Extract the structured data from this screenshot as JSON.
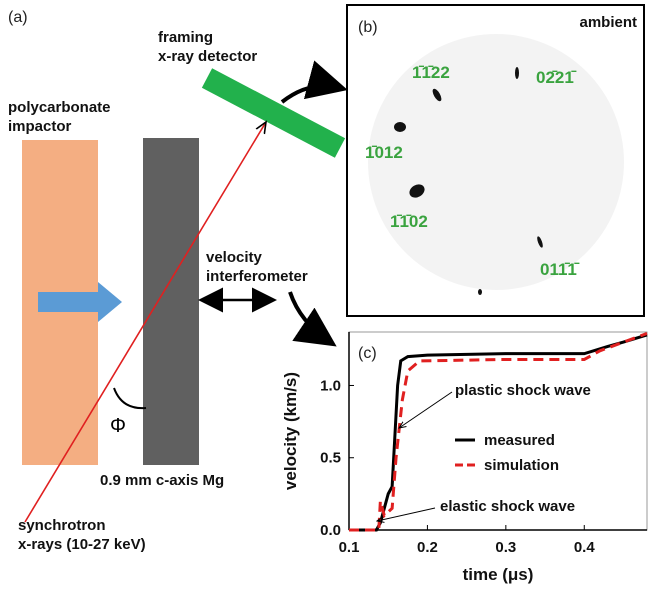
{
  "panel_a": {
    "label": "(a)",
    "detector_label": [
      "framing",
      "x-ray detector"
    ],
    "impactor_label": [
      "polycarbonate",
      "impactor"
    ],
    "interferometer_label": [
      "velocity",
      "interferometer"
    ],
    "angle_label": "Φ",
    "sample_label": "0.9 mm c-axis Mg",
    "source_label": [
      "synchrotron",
      "x-rays (10-27 keV)"
    ]
  },
  "panel_b": {
    "label": "(b)",
    "condition": "ambient",
    "reflections": [
      "1̄1̄22",
      "02̄21̄",
      "1̄012",
      "1̄1̄02",
      "011̄1̄"
    ]
  },
  "chart_data": {
    "type": "line",
    "panel_label": "(c)",
    "x_label": "time (μs)",
    "y_label": "velocity (km/s)",
    "xlim": [
      0.1,
      0.48
    ],
    "ylim": [
      0,
      1.37
    ],
    "xticks": [
      0.1,
      0.2,
      0.3,
      0.4
    ],
    "yticks": [
      {
        "value": 0,
        "label": "0.0"
      },
      0.5,
      {
        "value": 1,
        "label": "1.0"
      }
    ],
    "annotations": [
      "plastic shock wave",
      "elastic shock wave"
    ],
    "series": [
      {
        "name": "measured",
        "color": "#000000",
        "dash": false,
        "x": [
          0.1,
          0.135,
          0.14,
          0.145,
          0.15,
          0.155,
          0.158,
          0.162,
          0.166,
          0.175,
          0.2,
          0.3,
          0.4,
          0.43,
          0.45,
          0.48
        ],
        "values": [
          0,
          0,
          0.05,
          0.15,
          0.25,
          0.3,
          0.6,
          1.0,
          1.17,
          1.2,
          1.21,
          1.22,
          1.22,
          1.27,
          1.3,
          1.35
        ]
      },
      {
        "name": "simulation",
        "color": "#e02020",
        "dash": true,
        "x": [
          0.1,
          0.138,
          0.14,
          0.145,
          0.155,
          0.16,
          0.168,
          0.175,
          0.19,
          0.3,
          0.4,
          0.42,
          0.45,
          0.48
        ],
        "values": [
          0,
          0,
          0.2,
          0.1,
          0.15,
          0.5,
          0.9,
          1.1,
          1.17,
          1.18,
          1.18,
          1.24,
          1.3,
          1.36
        ]
      }
    ]
  }
}
